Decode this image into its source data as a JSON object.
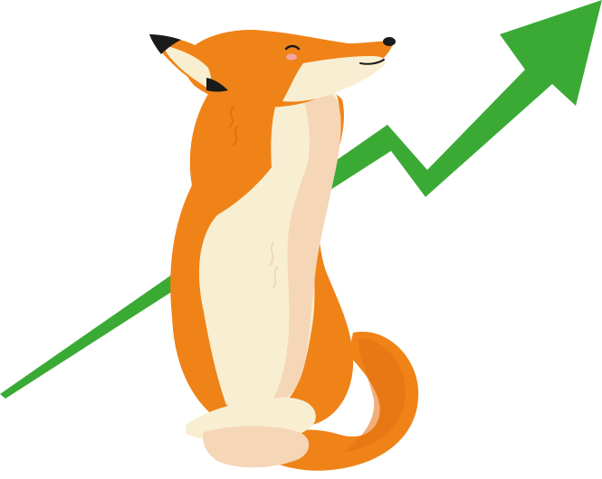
{
  "illustration": {
    "subject": "fox-icon",
    "trend": "trend-up-arrow-icon"
  },
  "colors": {
    "background": "#ffffff",
    "arrow_green": "#3aaa35",
    "fox_orange": "#ef8318",
    "fox_orange_dark": "#e27012",
    "fur_cream": "#f8efd2",
    "fur_peach": "#f5d6b6",
    "nose_black": "#1a1a1a",
    "cheek_pink": "#f4a4a0"
  }
}
